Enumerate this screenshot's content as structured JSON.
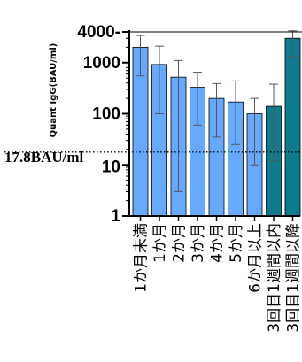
{
  "chart_data": {
    "type": "bar",
    "ylabel": "Quant IgG(BAU/ml)",
    "yscale": "log",
    "ylim": [
      1,
      4000
    ],
    "yticks": [
      {
        "value": 1,
        "label": "1"
      },
      {
        "value": 10,
        "label": "10"
      },
      {
        "value": 100,
        "label": "100"
      },
      {
        "value": 1000,
        "label": "1000"
      },
      {
        "value": 4000,
        "label": "4000-"
      }
    ],
    "threshold": {
      "value": 17.8,
      "label": "17.8BAU/ml"
    },
    "categories": [
      "1か月未満",
      "1か月",
      "2か月",
      "3か月",
      "4か月",
      "5か月",
      "6か月以上",
      "3回目1週間以内",
      "3回目1週間以降"
    ],
    "values": [
      2000,
      920,
      520,
      330,
      200,
      170,
      100,
      140,
      3000
    ],
    "error_low": [
      550,
      100,
      3,
      60,
      35,
      25,
      10,
      12,
      1300
    ],
    "error_high": [
      3400,
      2100,
      1100,
      650,
      390,
      440,
      200,
      380,
      4200
    ],
    "colors": [
      "#66aaff",
      "#66aaff",
      "#66aaff",
      "#66aaff",
      "#66aaff",
      "#66aaff",
      "#66aaff",
      "#0e7c8e",
      "#0e7c8e"
    ]
  }
}
